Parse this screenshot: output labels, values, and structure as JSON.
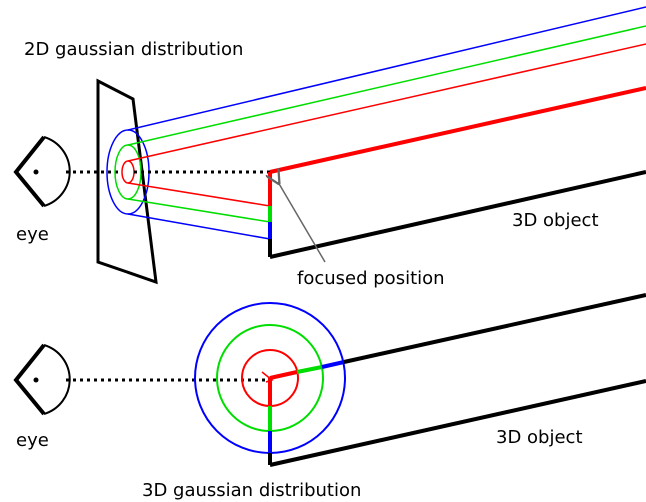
{
  "labels": {
    "top_title": "2D gaussian distribution",
    "eye_top": "eye",
    "object_top": "3D object",
    "focused": "focused position",
    "eye_bottom": "eye",
    "object_bottom": "3D object",
    "bottom_title": "3D gaussian distribution"
  },
  "colors": {
    "red": "#ff0000",
    "green": "#00dd00",
    "blue": "#0000ff",
    "black": "#000000",
    "gray": "#666666"
  }
}
